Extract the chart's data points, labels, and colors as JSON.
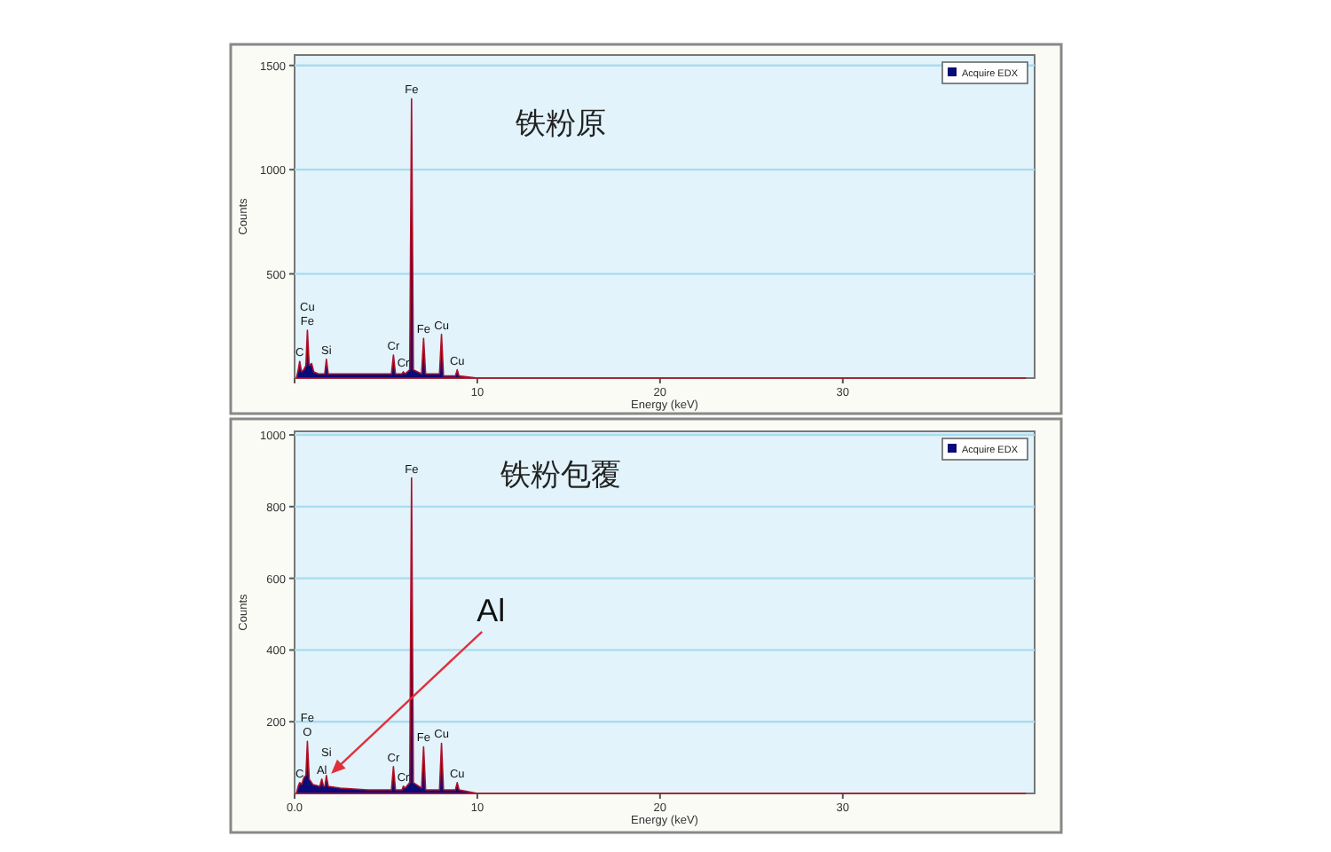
{
  "chart_data": [
    {
      "type": "area",
      "title": "铁粉原",
      "xlabel": "Energy (keV)",
      "ylabel": "Counts",
      "xlim": [
        0,
        40.5
      ],
      "ylim": [
        0,
        1550
      ],
      "xticks": [
        {
          "value": 0,
          "label": null
        },
        10,
        20,
        30
      ],
      "yticks": [
        500,
        1000,
        1500
      ],
      "grid": "y",
      "legend": "top right",
      "series": [
        {
          "name": "Acquire EDX",
          "color": "#0a0a78",
          "x": [
            0.1,
            0.2,
            0.28,
            0.38,
            0.5,
            0.62,
            0.7,
            0.8,
            0.93,
            1.05,
            1.3,
            1.65,
            1.74,
            1.84,
            2.5,
            4,
            5.3,
            5.41,
            5.52,
            5.88,
            5.95,
            6.05,
            6.3,
            6.4,
            6.5,
            6.95,
            7.06,
            7.17,
            7.93,
            8.04,
            8.15,
            8.8,
            8.9,
            9.0,
            10,
            15,
            20,
            30,
            40
          ],
          "values": [
            0,
            40,
            80,
            30,
            40,
            60,
            230,
            60,
            70,
            30,
            20,
            20,
            90,
            20,
            20,
            20,
            20,
            110,
            20,
            20,
            30,
            20,
            40,
            1340,
            40,
            20,
            190,
            20,
            20,
            210,
            10,
            10,
            40,
            10,
            0,
            0,
            0,
            0,
            0
          ]
        }
      ],
      "annotations": [
        {
          "text": "C",
          "x": 0.28,
          "y": 80
        },
        {
          "text": "Fe",
          "x": 0.7,
          "y": 230
        },
        {
          "text": "Cu",
          "x": 0.7,
          "y": 230
        },
        {
          "text": "Si",
          "x": 1.74,
          "y": 90
        },
        {
          "text": "Cr",
          "x": 5.41,
          "y": 110
        },
        {
          "text": "Cr",
          "x": 5.95,
          "y": 30
        },
        {
          "text": "Fe",
          "x": 6.4,
          "y": 1340
        },
        {
          "text": "Fe",
          "x": 7.06,
          "y": 190
        },
        {
          "text": "Cu",
          "x": 8.04,
          "y": 210
        },
        {
          "text": "Cu",
          "x": 8.9,
          "y": 40
        }
      ]
    },
    {
      "type": "area",
      "title": "铁粉包覆",
      "xlabel": "Energy (keV)",
      "ylabel": "Counts",
      "xlim": [
        0,
        40.5
      ],
      "ylim": [
        0,
        1010
      ],
      "xticks": [
        {
          "value": 0,
          "label": "0.0"
        },
        10,
        20,
        30
      ],
      "yticks": [
        200,
        400,
        600,
        800,
        1000
      ],
      "grid": "y",
      "legend": "top right",
      "series": [
        {
          "name": "Acquire EDX",
          "color": "#0a0a78",
          "x": [
            0.1,
            0.2,
            0.28,
            0.38,
            0.52,
            0.62,
            0.7,
            0.8,
            1.0,
            1.38,
            1.49,
            1.58,
            1.66,
            1.74,
            1.84,
            2.5,
            4,
            5.3,
            5.41,
            5.52,
            5.88,
            5.95,
            6.05,
            6.3,
            6.4,
            6.5,
            6.95,
            7.06,
            7.17,
            7.93,
            8.04,
            8.15,
            8.8,
            8.9,
            9.0,
            10,
            20,
            30,
            40
          ],
          "values": [
            0,
            20,
            30,
            25,
            45,
            50,
            145,
            40,
            25,
            20,
            40,
            20,
            20,
            50,
            20,
            15,
            10,
            10,
            75,
            10,
            10,
            20,
            15,
            30,
            880,
            30,
            15,
            130,
            10,
            10,
            140,
            10,
            10,
            30,
            10,
            0,
            0,
            0,
            0
          ]
        }
      ],
      "annotations": [
        {
          "text": "C",
          "x": 0.28,
          "y": 30
        },
        {
          "text": "O",
          "x": 0.7,
          "y": 145
        },
        {
          "text": "Fe",
          "x": 0.7,
          "y": 145
        },
        {
          "text": "Al",
          "x": 1.49,
          "y": 40
        },
        {
          "text": "Si",
          "x": 1.74,
          "y": 50
        },
        {
          "text": "Cr",
          "x": 5.41,
          "y": 75
        },
        {
          "text": "Cr",
          "x": 5.95,
          "y": 20
        },
        {
          "text": "Fe",
          "x": 6.4,
          "y": 880
        },
        {
          "text": "Fe",
          "x": 7.06,
          "y": 130
        },
        {
          "text": "Cu",
          "x": 8.04,
          "y": 140
        },
        {
          "text": "Cu",
          "x": 8.9,
          "y": 30
        },
        {
          "text": "Al",
          "x": 2.0,
          "y": 55
        }
      ]
    }
  ]
}
